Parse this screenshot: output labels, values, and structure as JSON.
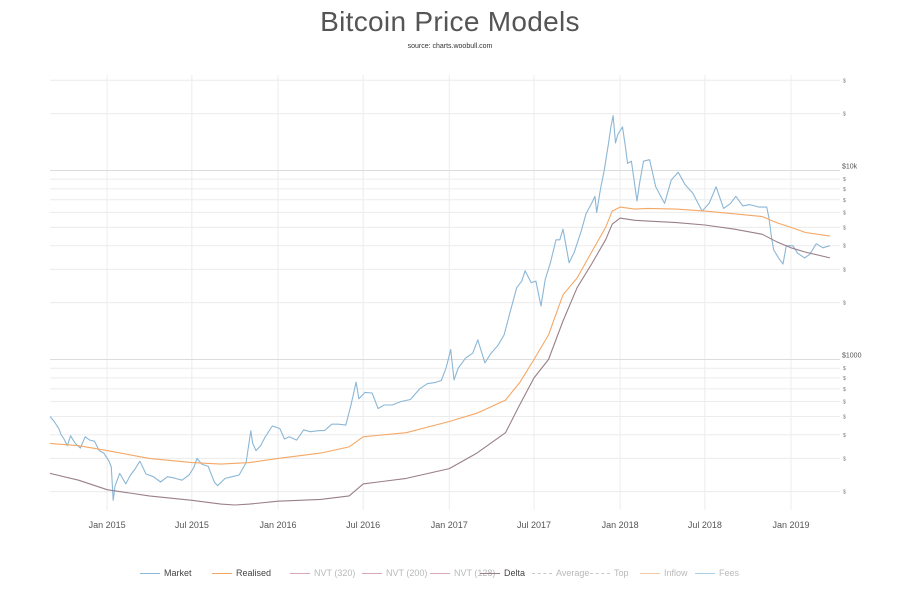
{
  "chart_data": {
    "type": "line",
    "title": "Bitcoin Price Models",
    "subtitle": "source: charts.woobull.com",
    "y_scale": "log",
    "ylim": [
      160,
      32000
    ],
    "xlim": [
      "2014-09-01",
      "2019-04-05"
    ],
    "y_major_ticks": [
      {
        "value": 1000,
        "label": "$1000"
      },
      {
        "value": 10000,
        "label": "$10k"
      }
    ],
    "y_minor_ticks": [
      {
        "value": 200,
        "label": "$"
      },
      {
        "value": 300,
        "label": "$"
      },
      {
        "value": 400,
        "label": "$"
      },
      {
        "value": 500,
        "label": "$"
      },
      {
        "value": 600,
        "label": "$"
      },
      {
        "value": 700,
        "label": "$"
      },
      {
        "value": 800,
        "label": "$"
      },
      {
        "value": 900,
        "label": "$"
      },
      {
        "value": 2000,
        "label": "$"
      },
      {
        "value": 3000,
        "label": "$"
      },
      {
        "value": 4000,
        "label": "$"
      },
      {
        "value": 5000,
        "label": "$"
      },
      {
        "value": 6000,
        "label": "$"
      },
      {
        "value": 7000,
        "label": "$"
      },
      {
        "value": 8000,
        "label": "$"
      },
      {
        "value": 9000,
        "label": "$"
      },
      {
        "value": 20000,
        "label": "$"
      },
      {
        "value": 30000,
        "label": "$"
      }
    ],
    "x_ticks": [
      {
        "value": "2015-01-01",
        "label": "Jan 2015"
      },
      {
        "value": "2015-07-01",
        "label": "Jul 2015"
      },
      {
        "value": "2016-01-01",
        "label": "Jan 2016"
      },
      {
        "value": "2016-07-01",
        "label": "Jul 2016"
      },
      {
        "value": "2017-01-01",
        "label": "Jan 2017"
      },
      {
        "value": "2017-07-01",
        "label": "Jul 2017"
      },
      {
        "value": "2018-01-01",
        "label": "Jan 2018"
      },
      {
        "value": "2018-07-01",
        "label": "Jul 2018"
      },
      {
        "value": "2019-01-01",
        "label": "Jan 2019"
      }
    ],
    "grid": true,
    "legend_position": "bottom",
    "series": [
      {
        "name": "Market",
        "color": "#8bb7d6",
        "visible": true,
        "points": [
          [
            "2014-09-01",
            500
          ],
          [
            "2014-09-10",
            470
          ],
          [
            "2014-09-20",
            430
          ],
          [
            "2014-09-25",
            400
          ],
          [
            "2014-10-01",
            380
          ],
          [
            "2014-10-08",
            350
          ],
          [
            "2014-10-15",
            395
          ],
          [
            "2014-10-25",
            360
          ],
          [
            "2014-11-05",
            340
          ],
          [
            "2014-11-15",
            390
          ],
          [
            "2014-11-25",
            375
          ],
          [
            "2014-12-05",
            370
          ],
          [
            "2014-12-15",
            330
          ],
          [
            "2014-12-25",
            320
          ],
          [
            "2015-01-05",
            290
          ],
          [
            "2015-01-10",
            270
          ],
          [
            "2015-01-14",
            180
          ],
          [
            "2015-01-18",
            215
          ],
          [
            "2015-01-28",
            250
          ],
          [
            "2015-02-10",
            220
          ],
          [
            "2015-02-20",
            245
          ],
          [
            "2015-03-01",
            262
          ],
          [
            "2015-03-12",
            290
          ],
          [
            "2015-03-25",
            248
          ],
          [
            "2015-04-10",
            240
          ],
          [
            "2015-04-25",
            225
          ],
          [
            "2015-05-10",
            240
          ],
          [
            "2015-05-25",
            236
          ],
          [
            "2015-06-10",
            230
          ],
          [
            "2015-06-25",
            245
          ],
          [
            "2015-07-05",
            268
          ],
          [
            "2015-07-12",
            300
          ],
          [
            "2015-07-22",
            280
          ],
          [
            "2015-08-05",
            272
          ],
          [
            "2015-08-18",
            225
          ],
          [
            "2015-08-25",
            215
          ],
          [
            "2015-09-10",
            235
          ],
          [
            "2015-09-25",
            240
          ],
          [
            "2015-10-10",
            245
          ],
          [
            "2015-10-25",
            285
          ],
          [
            "2015-11-04",
            420
          ],
          [
            "2015-11-08",
            360
          ],
          [
            "2015-11-15",
            330
          ],
          [
            "2015-11-25",
            350
          ],
          [
            "2015-12-05",
            390
          ],
          [
            "2015-12-20",
            445
          ],
          [
            "2016-01-05",
            432
          ],
          [
            "2016-01-15",
            380
          ],
          [
            "2016-01-25",
            390
          ],
          [
            "2016-02-10",
            375
          ],
          [
            "2016-02-25",
            425
          ],
          [
            "2016-03-10",
            415
          ],
          [
            "2016-03-25",
            420
          ],
          [
            "2016-04-10",
            422
          ],
          [
            "2016-04-25",
            455
          ],
          [
            "2016-05-10",
            455
          ],
          [
            "2016-05-25",
            450
          ],
          [
            "2016-06-05",
            575
          ],
          [
            "2016-06-16",
            760
          ],
          [
            "2016-06-22",
            620
          ],
          [
            "2016-07-05",
            670
          ],
          [
            "2016-07-20",
            665
          ],
          [
            "2016-08-02",
            550
          ],
          [
            "2016-08-15",
            575
          ],
          [
            "2016-09-01",
            575
          ],
          [
            "2016-09-20",
            600
          ],
          [
            "2016-10-10",
            615
          ],
          [
            "2016-10-30",
            700
          ],
          [
            "2016-11-15",
            745
          ],
          [
            "2016-12-01",
            755
          ],
          [
            "2016-12-15",
            775
          ],
          [
            "2016-12-25",
            900
          ],
          [
            "2017-01-04",
            1130
          ],
          [
            "2017-01-11",
            780
          ],
          [
            "2017-01-20",
            900
          ],
          [
            "2017-02-05",
            1020
          ],
          [
            "2017-02-20",
            1080
          ],
          [
            "2017-03-03",
            1270
          ],
          [
            "2017-03-18",
            960
          ],
          [
            "2017-03-30",
            1070
          ],
          [
            "2017-04-15",
            1190
          ],
          [
            "2017-04-28",
            1350
          ],
          [
            "2017-05-10",
            1750
          ],
          [
            "2017-05-25",
            2400
          ],
          [
            "2017-06-05",
            2600
          ],
          [
            "2017-06-12",
            2950
          ],
          [
            "2017-06-25",
            2550
          ],
          [
            "2017-07-05",
            2600
          ],
          [
            "2017-07-16",
            1920
          ],
          [
            "2017-07-25",
            2650
          ],
          [
            "2017-08-05",
            3250
          ],
          [
            "2017-08-17",
            4300
          ],
          [
            "2017-08-25",
            4300
          ],
          [
            "2017-09-01",
            4900
          ],
          [
            "2017-09-14",
            3250
          ],
          [
            "2017-09-25",
            3700
          ],
          [
            "2017-10-10",
            4800
          ],
          [
            "2017-10-20",
            5900
          ],
          [
            "2017-11-01",
            6700
          ],
          [
            "2017-11-08",
            7300
          ],
          [
            "2017-11-12",
            6000
          ],
          [
            "2017-11-20",
            8000
          ],
          [
            "2017-11-28",
            10000
          ],
          [
            "2017-12-07",
            13800
          ],
          [
            "2017-12-12",
            16900
          ],
          [
            "2017-12-17",
            19500
          ],
          [
            "2017-12-22",
            14000
          ],
          [
            "2017-12-27",
            15500
          ],
          [
            "2018-01-06",
            17000
          ],
          [
            "2018-01-12",
            13500
          ],
          [
            "2018-01-17",
            10900
          ],
          [
            "2018-01-25",
            11200
          ],
          [
            "2018-02-06",
            6900
          ],
          [
            "2018-02-12",
            8700
          ],
          [
            "2018-02-20",
            11200
          ],
          [
            "2018-03-05",
            11400
          ],
          [
            "2018-03-18",
            8200
          ],
          [
            "2018-04-06",
            6700
          ],
          [
            "2018-04-20",
            8900
          ],
          [
            "2018-05-05",
            9800
          ],
          [
            "2018-05-20",
            8400
          ],
          [
            "2018-06-05",
            7600
          ],
          [
            "2018-06-25",
            6100
          ],
          [
            "2018-07-10",
            6700
          ],
          [
            "2018-07-25",
            8200
          ],
          [
            "2018-08-10",
            6300
          ],
          [
            "2018-08-25",
            6700
          ],
          [
            "2018-09-05",
            7300
          ],
          [
            "2018-09-20",
            6500
          ],
          [
            "2018-10-05",
            6600
          ],
          [
            "2018-10-25",
            6400
          ],
          [
            "2018-11-10",
            6400
          ],
          [
            "2018-11-15",
            5600
          ],
          [
            "2018-11-20",
            4500
          ],
          [
            "2018-11-25",
            3800
          ],
          [
            "2018-12-07",
            3400
          ],
          [
            "2018-12-15",
            3200
          ],
          [
            "2018-12-22",
            4000
          ],
          [
            "2019-01-05",
            4000
          ],
          [
            "2019-01-15",
            3650
          ],
          [
            "2019-01-30",
            3450
          ],
          [
            "2019-02-10",
            3600
          ],
          [
            "2019-02-24",
            4100
          ],
          [
            "2019-03-10",
            3900
          ],
          [
            "2019-03-25",
            4000
          ]
        ]
      },
      {
        "name": "Realised",
        "color": "#f5a766",
        "visible": true,
        "points": [
          [
            "2014-09-01",
            360
          ],
          [
            "2014-11-01",
            350
          ],
          [
            "2015-01-01",
            330
          ],
          [
            "2015-04-01",
            300
          ],
          [
            "2015-07-01",
            285
          ],
          [
            "2015-09-01",
            280
          ],
          [
            "2015-11-01",
            285
          ],
          [
            "2016-01-01",
            300
          ],
          [
            "2016-04-01",
            320
          ],
          [
            "2016-06-01",
            345
          ],
          [
            "2016-07-01",
            390
          ],
          [
            "2016-10-01",
            410
          ],
          [
            "2017-01-01",
            470
          ],
          [
            "2017-03-01",
            520
          ],
          [
            "2017-05-01",
            610
          ],
          [
            "2017-06-01",
            760
          ],
          [
            "2017-07-01",
            1000
          ],
          [
            "2017-08-01",
            1350
          ],
          [
            "2017-09-01",
            2200
          ],
          [
            "2017-10-01",
            2700
          ],
          [
            "2017-11-01",
            3700
          ],
          [
            "2017-12-01",
            5000
          ],
          [
            "2017-12-15",
            6100
          ],
          [
            "2018-01-01",
            6400
          ],
          [
            "2018-02-01",
            6250
          ],
          [
            "2018-03-01",
            6300
          ],
          [
            "2018-05-01",
            6250
          ],
          [
            "2018-07-01",
            6100
          ],
          [
            "2018-09-01",
            5900
          ],
          [
            "2018-11-01",
            5700
          ],
          [
            "2018-12-01",
            5300
          ],
          [
            "2019-01-01",
            5000
          ],
          [
            "2019-02-01",
            4700
          ],
          [
            "2019-03-25",
            4500
          ]
        ]
      },
      {
        "name": "NVT (320)",
        "color": "#d8a8b4",
        "visible": false,
        "points": []
      },
      {
        "name": "NVT (200)",
        "color": "#d8a8b4",
        "visible": false,
        "points": []
      },
      {
        "name": "NVT (128)",
        "color": "#d8a8b4",
        "visible": false,
        "points": []
      },
      {
        "name": "Delta",
        "color": "#9a7f87",
        "visible": true,
        "points": [
          [
            "2014-09-01",
            250
          ],
          [
            "2014-11-01",
            230
          ],
          [
            "2015-01-01",
            205
          ],
          [
            "2015-04-01",
            190
          ],
          [
            "2015-07-01",
            180
          ],
          [
            "2015-09-01",
            172
          ],
          [
            "2015-10-01",
            170
          ],
          [
            "2015-11-01",
            172
          ],
          [
            "2016-01-01",
            178
          ],
          [
            "2016-04-01",
            182
          ],
          [
            "2016-06-01",
            190
          ],
          [
            "2016-07-01",
            220
          ],
          [
            "2016-10-01",
            235
          ],
          [
            "2017-01-01",
            265
          ],
          [
            "2017-03-01",
            320
          ],
          [
            "2017-05-01",
            410
          ],
          [
            "2017-06-01",
            580
          ],
          [
            "2017-07-01",
            800
          ],
          [
            "2017-08-01",
            1000
          ],
          [
            "2017-09-01",
            1600
          ],
          [
            "2017-10-01",
            2400
          ],
          [
            "2017-11-01",
            3200
          ],
          [
            "2017-12-01",
            4300
          ],
          [
            "2017-12-15",
            5200
          ],
          [
            "2018-01-01",
            5600
          ],
          [
            "2018-02-01",
            5450
          ],
          [
            "2018-03-01",
            5400
          ],
          [
            "2018-05-01",
            5300
          ],
          [
            "2018-07-01",
            5150
          ],
          [
            "2018-09-01",
            4900
          ],
          [
            "2018-11-01",
            4600
          ],
          [
            "2018-12-01",
            4200
          ],
          [
            "2019-01-01",
            3900
          ],
          [
            "2019-02-01",
            3700
          ],
          [
            "2019-03-25",
            3450
          ]
        ]
      },
      {
        "name": "Average",
        "color": "#c8c8c8",
        "visible": false,
        "dash": true,
        "points": []
      },
      {
        "name": "Top",
        "color": "#c8c8c8",
        "visible": false,
        "dash": true,
        "points": []
      },
      {
        "name": "Inflow",
        "color": "#f5c9a3",
        "visible": false,
        "points": []
      },
      {
        "name": "Fees",
        "color": "#a9cfe8",
        "visible": false,
        "points": []
      }
    ]
  }
}
